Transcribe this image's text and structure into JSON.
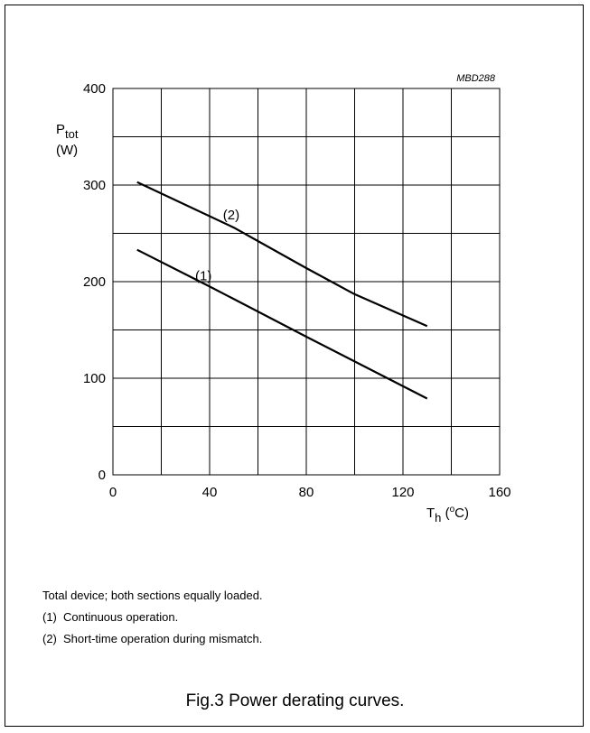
{
  "figure": {
    "code": "MBD288",
    "caption": "Fig.3  Power derating curves.",
    "notes": {
      "intro": "Total device; both sections equally loaded.",
      "items": [
        {
          "num": "(1)",
          "text": "Continuous operation."
        },
        {
          "num": "(2)",
          "text": "Short-time operation during mismatch."
        }
      ]
    }
  },
  "chart_data": {
    "type": "line",
    "ylabel": {
      "main": "P",
      "sub": "tot",
      "unit": "(W)"
    },
    "xlabel": {
      "main": "T",
      "sub": "h",
      "unit_pre": " (",
      "sup": "o",
      "unit_post": "C)"
    },
    "xlim": [
      0,
      160
    ],
    "ylim": [
      0,
      400
    ],
    "xticks": [
      0,
      40,
      80,
      120,
      160
    ],
    "yticks": [
      0,
      100,
      200,
      300,
      400
    ],
    "grid": true,
    "grid_x_step": 20,
    "grid_y_step": 50,
    "series": [
      {
        "name": "(1)",
        "label": "(1)",
        "x": [
          10,
          40,
          80,
          130
        ],
        "y": [
          233,
          195,
          143,
          79
        ]
      },
      {
        "name": "(2)",
        "label": "(2)",
        "x": [
          10,
          50,
          80,
          100,
          130
        ],
        "y": [
          303,
          256,
          214,
          187,
          154
        ]
      }
    ]
  }
}
